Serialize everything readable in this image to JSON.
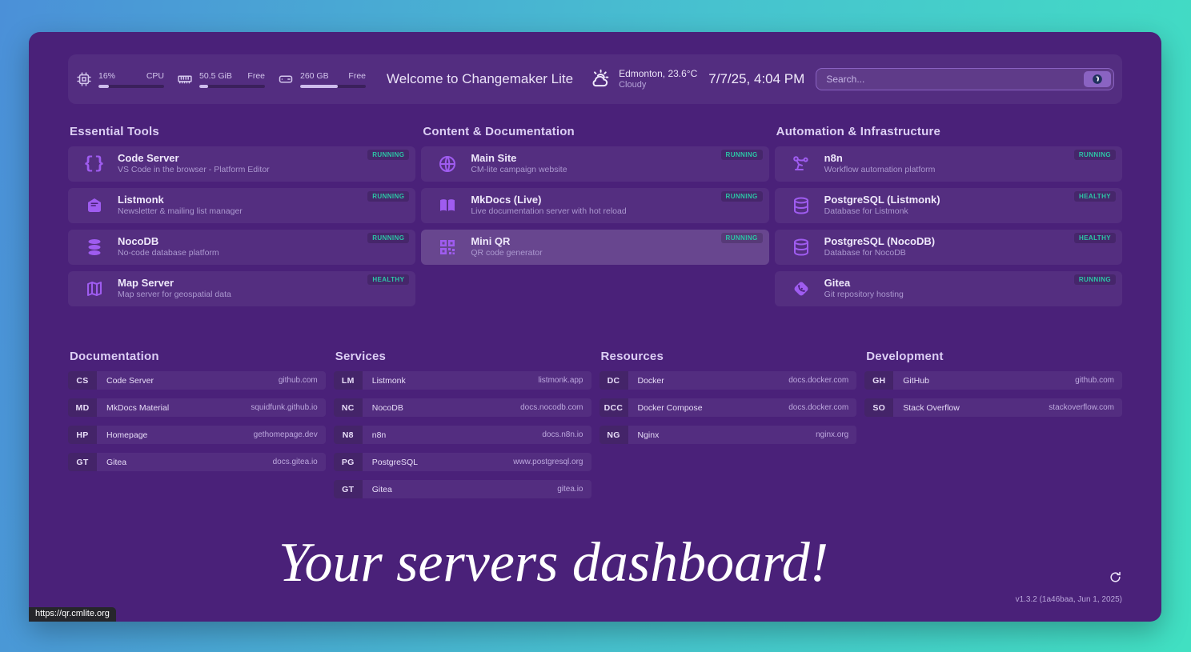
{
  "colors": {
    "background_gradient_start": "#4b90d8",
    "background_gradient_end": "#41e0c2",
    "panel": "#4a2179",
    "accent_icon": "#9f5cf0",
    "status_ok": "#2cc5a5",
    "text_primary": "#efe9fb",
    "text_secondary": "#ab98cf"
  },
  "header": {
    "stats": [
      {
        "icon": "cpu-icon",
        "value": "16%",
        "label": "CPU",
        "percent": 16
      },
      {
        "icon": "memory-icon",
        "value": "50.5 GiB",
        "label": "Free",
        "percent": 13
      },
      {
        "icon": "disk-icon",
        "value": "260 GB",
        "label": "Free",
        "percent": 57
      }
    ],
    "greeting": "Welcome to Changemaker Lite",
    "weather": {
      "icon": "partly-cloudy-icon",
      "location_temp": "Edmonton, 23.6°C",
      "condition": "Cloudy"
    },
    "datetime": "7/7/25, 4:04 PM",
    "search": {
      "placeholder": "Search...",
      "provider_icon": "duckduckgo-icon"
    }
  },
  "service_groups": [
    {
      "title": "Essential Tools",
      "items": [
        {
          "icon": "braces-icon",
          "title": "Code Server",
          "subtitle": "VS Code in the browser - Platform Editor",
          "status": "RUNNING"
        },
        {
          "icon": "mail-icon",
          "title": "Listmonk",
          "subtitle": "Newsletter & mailing list manager",
          "status": "RUNNING"
        },
        {
          "icon": "database-solid-icon",
          "title": "NocoDB",
          "subtitle": "No-code database platform",
          "status": "RUNNING"
        },
        {
          "icon": "map-icon",
          "title": "Map Server",
          "subtitle": "Map server for geospatial data",
          "status": "HEALTHY"
        }
      ]
    },
    {
      "title": "Content & Documentation",
      "items": [
        {
          "icon": "globe-icon",
          "title": "Main Site",
          "subtitle": "CM-lite campaign website",
          "status": "RUNNING"
        },
        {
          "icon": "book-icon",
          "title": "MkDocs (Live)",
          "subtitle": "Live documentation server with hot reload",
          "status": "RUNNING"
        },
        {
          "icon": "qr-icon",
          "title": "Mini QR",
          "subtitle": "QR code generator",
          "status": "RUNNING",
          "hovered": true
        }
      ]
    },
    {
      "title": "Automation & Infrastructure",
      "items": [
        {
          "icon": "workflow-icon",
          "title": "n8n",
          "subtitle": "Workflow automation platform",
          "status": "RUNNING"
        },
        {
          "icon": "database-icon",
          "title": "PostgreSQL (Listmonk)",
          "subtitle": "Database for Listmonk",
          "status": "HEALTHY"
        },
        {
          "icon": "database-icon",
          "title": "PostgreSQL (NocoDB)",
          "subtitle": "Database for NocoDB",
          "status": "HEALTHY"
        },
        {
          "icon": "gitea-icon",
          "title": "Gitea",
          "subtitle": "Git repository hosting",
          "status": "RUNNING"
        }
      ]
    }
  ],
  "bookmark_groups": [
    {
      "title": "Documentation",
      "items": [
        {
          "abbr": "CS",
          "name": "Code Server",
          "url": "github.com"
        },
        {
          "abbr": "MD",
          "name": "MkDocs Material",
          "url": "squidfunk.github.io"
        },
        {
          "abbr": "HP",
          "name": "Homepage",
          "url": "gethomepage.dev"
        },
        {
          "abbr": "GT",
          "name": "Gitea",
          "url": "docs.gitea.io"
        }
      ]
    },
    {
      "title": "Services",
      "items": [
        {
          "abbr": "LM",
          "name": "Listmonk",
          "url": "listmonk.app"
        },
        {
          "abbr": "NC",
          "name": "NocoDB",
          "url": "docs.nocodb.com"
        },
        {
          "abbr": "N8",
          "name": "n8n",
          "url": "docs.n8n.io"
        },
        {
          "abbr": "PG",
          "name": "PostgreSQL",
          "url": "www.postgresql.org"
        },
        {
          "abbr": "GT",
          "name": "Gitea",
          "url": "gitea.io"
        }
      ]
    },
    {
      "title": "Resources",
      "items": [
        {
          "abbr": "DC",
          "name": "Docker",
          "url": "docs.docker.com"
        },
        {
          "abbr": "DCC",
          "name": "Docker Compose",
          "url": "docs.docker.com"
        },
        {
          "abbr": "NG",
          "name": "Nginx",
          "url": "nginx.org"
        }
      ]
    },
    {
      "title": "Development",
      "items": [
        {
          "abbr": "GH",
          "name": "GitHub",
          "url": "github.com"
        },
        {
          "abbr": "SO",
          "name": "Stack Overflow",
          "url": "stackoverflow.com"
        }
      ]
    }
  ],
  "footer": {
    "tagline": "Your servers dashboard!",
    "version": "v1.3.2 (1a46baa, Jun 1, 2025)"
  },
  "status_tooltip": "https://qr.cmlite.org"
}
